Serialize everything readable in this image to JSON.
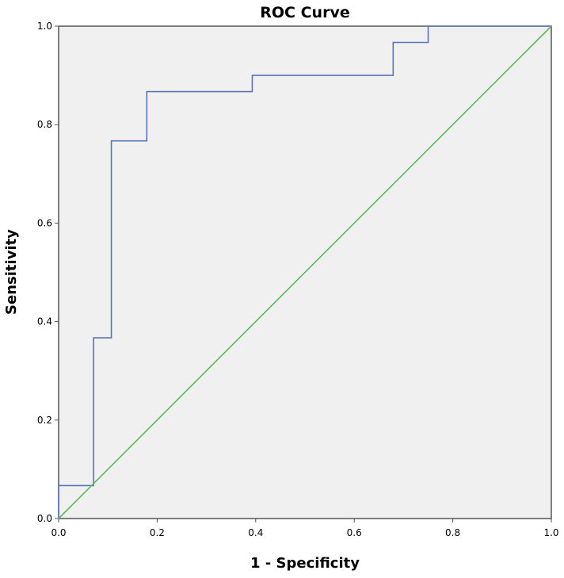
{
  "chart_data": {
    "type": "line",
    "title": "ROC Curve",
    "xlabel": "1 - Specificity",
    "ylabel": "Sensitivity",
    "xlim": [
      0,
      1
    ],
    "ylim": [
      0,
      1
    ],
    "x_ticks": [
      "0.0",
      "0.2",
      "0.4",
      "0.6",
      "0.8",
      "1.0"
    ],
    "y_ticks": [
      "0.0",
      "0.2",
      "0.4",
      "0.6",
      "0.8",
      "1.0"
    ],
    "grid": false,
    "legend": "none",
    "background_color": "#f0f0f0",
    "series": [
      {
        "style": "step",
        "color": "#5b74b8",
        "x": [
          0.0,
          0.0,
          0.071,
          0.071,
          0.107,
          0.107,
          0.179,
          0.179,
          0.393,
          0.393,
          0.679,
          0.679,
          0.75,
          0.75,
          1.0
        ],
        "y": [
          0.0,
          0.067,
          0.067,
          0.367,
          0.367,
          0.767,
          0.767,
          0.867,
          0.867,
          0.9,
          0.9,
          0.967,
          0.967,
          1.0,
          1.0
        ]
      },
      {
        "style": "reference",
        "color": "#5cb85c",
        "x": [
          0.0,
          1.0
        ],
        "y": [
          0.0,
          1.0
        ]
      }
    ]
  }
}
